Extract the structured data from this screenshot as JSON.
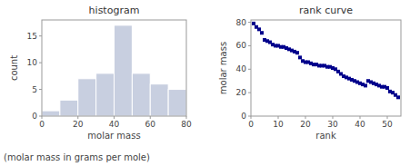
{
  "chart_data": [
    {
      "type": "histogram",
      "title": "histogram",
      "xlabel": "molar mass",
      "ylabel": "count",
      "bins": [
        0,
        10,
        20,
        30,
        40,
        50,
        60,
        70,
        80
      ],
      "values": [
        1,
        3,
        7,
        8,
        17,
        8,
        6,
        5
      ],
      "color": "#c8cfe0",
      "xlim": [
        0,
        80
      ],
      "ylim": [
        0,
        18
      ],
      "xticks": [
        0,
        20,
        40,
        60,
        80
      ],
      "yticks": [
        0,
        5,
        10,
        15
      ]
    },
    {
      "type": "scatter",
      "title": "rank curve",
      "xlabel": "rank",
      "ylabel": "molar mass",
      "x": [
        1,
        2,
        3,
        4,
        5,
        6,
        7,
        8,
        9,
        10,
        11,
        12,
        13,
        14,
        15,
        16,
        17,
        18,
        19,
        20,
        21,
        22,
        23,
        24,
        25,
        26,
        27,
        28,
        29,
        30,
        31,
        32,
        33,
        34,
        35,
        36,
        37,
        38,
        39,
        40,
        41,
        42,
        43,
        44,
        45,
        46,
        47,
        48,
        49,
        50,
        51,
        52,
        53,
        54
      ],
      "values": [
        79,
        76,
        74,
        71,
        65,
        64,
        63,
        61,
        60,
        60,
        59,
        59,
        58,
        57,
        56,
        55,
        54,
        50,
        47,
        46,
        46,
        45,
        44,
        44,
        43,
        43,
        43,
        42,
        42,
        41,
        40,
        38,
        36,
        34,
        33,
        32,
        31,
        30,
        29,
        28,
        27,
        26,
        30,
        29,
        28,
        27,
        26,
        25,
        25,
        24,
        21,
        20,
        18,
        16
      ],
      "color": "#00008b",
      "marker": "square",
      "xlim": [
        0,
        55
      ],
      "ylim": [
        0,
        82
      ],
      "xticks": [
        0,
        10,
        20,
        30,
        40,
        50
      ],
      "yticks": [
        0,
        20,
        40,
        60,
        80
      ]
    }
  ],
  "caption": "(molar mass in grams per mole)"
}
